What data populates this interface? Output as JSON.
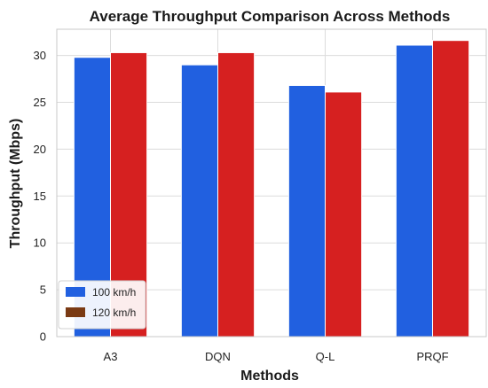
{
  "chart_data": {
    "type": "bar",
    "title": "Average Throughput Comparison Across Methods",
    "xlabel": "Methods",
    "ylabel": "Throughput (Mbps)",
    "categories": [
      "A3",
      "DQN",
      "Q-L",
      "PRQF"
    ],
    "series": [
      {
        "name": "100 km/h",
        "values": [
          29.8,
          29.0,
          26.8,
          31.1
        ]
      },
      {
        "name": "120 km/h",
        "values": [
          30.3,
          30.3,
          26.1,
          31.6
        ]
      }
    ],
    "ylim": [
      0,
      32.8
    ],
    "yticks": [
      0,
      5,
      10,
      15,
      20,
      25,
      30
    ],
    "grid": true,
    "legend_position": "lower-left",
    "colors": {
      "series": [
        "#2160e0",
        "#d62020"
      ],
      "legend_swatches": [
        "#2160e0",
        "#7a3a14"
      ],
      "grid": "#dcdcdc",
      "frame": "#c8c8c8"
    }
  }
}
